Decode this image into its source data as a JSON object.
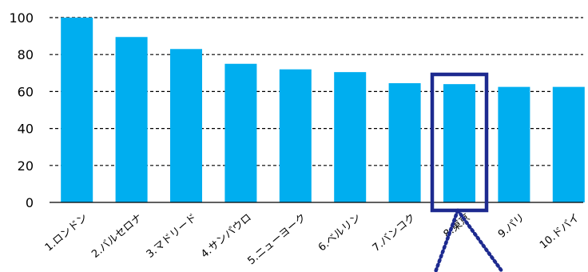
{
  "chart_data": {
    "type": "bar",
    "categories": [
      "1.ロンドン",
      "2.バルセロナ",
      "3.マドリード",
      "4.サンパウロ",
      "5.ニューヨーク",
      "6.ベルリン",
      "7.バンコク",
      "8.東京",
      "9.パリ",
      "10.ドバイ"
    ],
    "values": [
      100,
      89.5,
      83,
      75,
      72,
      70.5,
      64.5,
      64,
      62.5,
      62.5
    ],
    "ylim": [
      0,
      100
    ],
    "yticks": [
      0,
      20,
      40,
      60,
      80,
      100
    ],
    "grid": true,
    "grid_style": "dashed",
    "legend": "none",
    "highlight_category": "8.東京",
    "colors": {
      "bar": "#00aeef",
      "highlight_box": "#1d2a8f",
      "grid": "#000000",
      "axis": "#000000"
    }
  }
}
